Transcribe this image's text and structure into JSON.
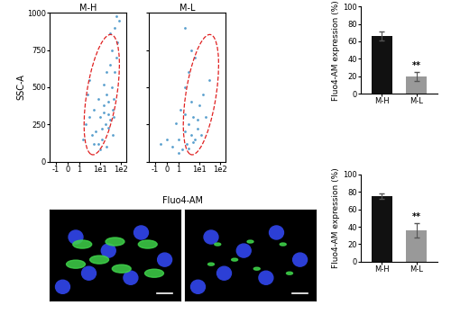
{
  "chart_data": [
    {
      "type": "scatter",
      "title": "M-H",
      "y_label": "SSC-A",
      "color": "#2e86c1",
      "log": "x",
      "x": [
        2,
        3,
        4,
        5,
        6,
        8,
        10,
        12,
        15,
        18,
        20,
        25,
        30,
        35,
        40,
        45,
        50,
        60,
        70,
        8,
        12,
        20,
        30,
        40,
        15,
        25,
        35,
        50,
        1.5,
        2.5,
        60,
        80,
        10,
        20,
        30,
        45,
        25,
        15,
        5,
        3
      ],
      "values": [
        250,
        300,
        180,
        350,
        200,
        420,
        300,
        150,
        380,
        250,
        450,
        320,
        280,
        500,
        350,
        420,
        600,
        700,
        800,
        120,
        220,
        600,
        650,
        180,
        520,
        400,
        750,
        900,
        150,
        450,
        980,
        950,
        80,
        100,
        860,
        300,
        230,
        330,
        120,
        550
      ],
      "xlim": [
        -2,
        180
      ],
      "xticks": [
        {
          "value": -1,
          "label": "-1"
        },
        0,
        1,
        {
          "value": 10,
          "label": "1e1"
        },
        {
          "value": 100,
          "label": "1e2"
        }
      ],
      "ylim": [
        0,
        1000
      ],
      "yticks": [
        0,
        250,
        500,
        750,
        1000
      ]
    },
    {
      "type": "scatter",
      "title": "M-L",
      "color": "#2e86c1",
      "log": "x",
      "tick_labels": "x",
      "x": [
        0.5,
        1,
        1.5,
        2,
        2.5,
        3,
        4,
        5,
        6,
        8,
        1,
        2,
        3,
        4,
        5,
        0.8,
        1.2,
        2,
        3,
        6,
        10,
        15,
        20,
        30,
        2,
        4,
        8,
        12,
        0,
        -0.5
      ],
      "values": [
        100,
        150,
        80,
        200,
        120,
        250,
        180,
        300,
        150,
        220,
        60,
        320,
        90,
        400,
        130,
        260,
        350,
        500,
        600,
        700,
        380,
        450,
        300,
        550,
        900,
        750,
        280,
        180,
        150,
        120
      ],
      "xlim": [
        -2,
        180
      ],
      "xticks": [
        {
          "value": -1,
          "label": "-1"
        },
        0,
        1,
        {
          "value": 10,
          "label": "1e1"
        },
        {
          "value": 100,
          "label": "1e2"
        }
      ],
      "ylim": [
        0,
        1000
      ],
      "yticks": [
        0,
        250,
        500,
        750,
        1000
      ]
    },
    {
      "type": "bar",
      "y_label": "Fluo4-AM expression (%)",
      "categories": [
        "M-H",
        "M-L"
      ],
      "values": [
        66,
        20
      ],
      "errors": [
        5,
        5
      ],
      "colors": [
        "#111111",
        "#999999"
      ],
      "ylim": [
        0,
        100
      ],
      "yticks": [
        0,
        20,
        40,
        60,
        80,
        100
      ],
      "annotations": [
        {
          "category": "M-L",
          "text": "**"
        }
      ]
    },
    {
      "type": "bar",
      "y_label": "Fluo4-AM expression (%)",
      "categories": [
        "M-H",
        "M-L"
      ],
      "values": [
        75,
        36
      ],
      "errors": [
        3,
        8
      ],
      "colors": [
        "#111111",
        "#999999"
      ],
      "ylim": [
        0,
        100
      ],
      "yticks": [
        0,
        20,
        40,
        60,
        80,
        100
      ],
      "annotations": [
        {
          "category": "M-L",
          "text": "**"
        }
      ]
    },
    {
      "type": "image",
      "title": "Fluo4-AM"
    }
  ]
}
